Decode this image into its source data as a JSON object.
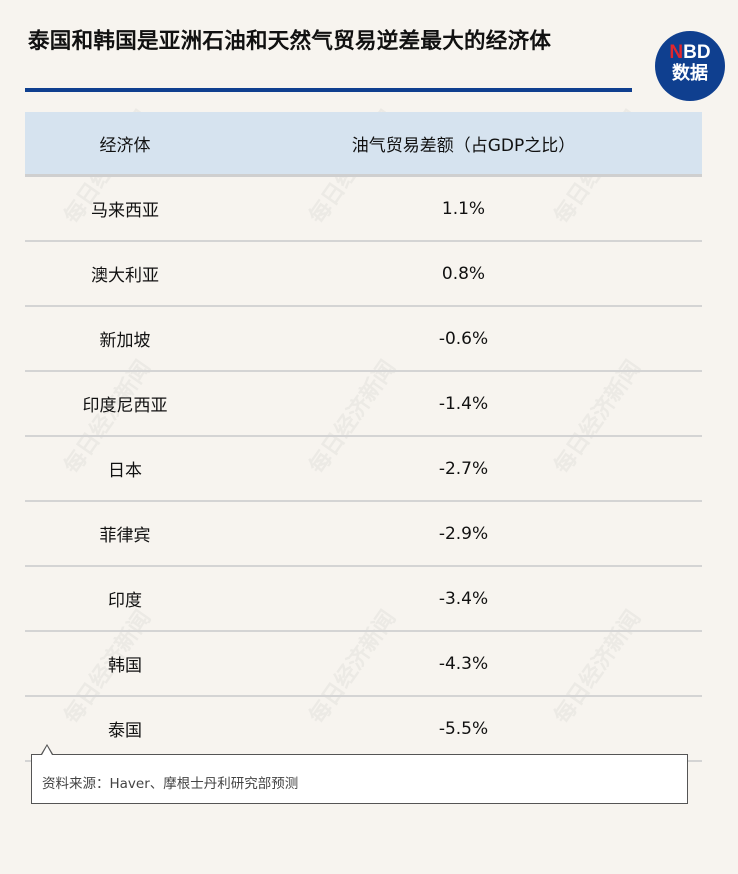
{
  "title": "泰国和韩国是亚洲石油和天然气贸易逆差最大的经济体",
  "logo": {
    "line1_red": "N",
    "line1_rest": "BD",
    "line2": "数据"
  },
  "accent_color": "#0f3f8f",
  "watermark": "每日经济新闻",
  "table": {
    "headers": [
      "经济体",
      "油气贸易差额（占GDP之比）"
    ],
    "rows": [
      [
        "马来西亚",
        "1.1%"
      ],
      [
        "澳大利亚",
        "0.8%"
      ],
      [
        "新加坡",
        "-0.6%"
      ],
      [
        "印度尼西亚",
        "-1.4%"
      ],
      [
        "日本",
        "-2.7%"
      ],
      [
        "菲律宾",
        "-2.9%"
      ],
      [
        "印度",
        "-3.4%"
      ],
      [
        "韩国",
        "-4.3%"
      ],
      [
        "泰国",
        "-5.5%"
      ]
    ]
  },
  "source_note": "资料来源：Haver、摩根士丹利研究部预测"
}
